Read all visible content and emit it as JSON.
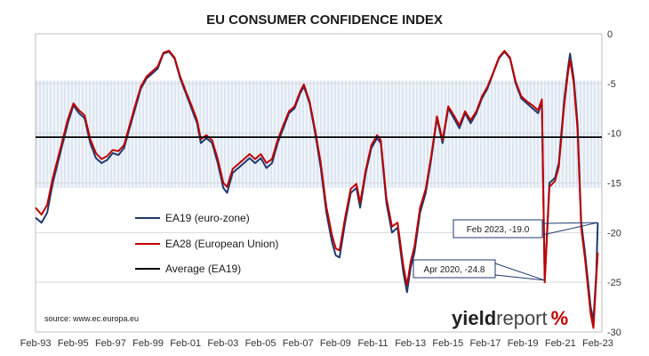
{
  "chart_data": {
    "type": "line",
    "title": "EU CONSUMER CONFIDENCE INDEX",
    "xlabel": "",
    "ylabel": "",
    "x_tick_labels": [
      "Feb-93",
      "Feb-95",
      "Feb-97",
      "Feb-99",
      "Feb-01",
      "Feb-03",
      "Feb-05",
      "Feb-07",
      "Feb-09",
      "Feb-11",
      "Feb-13",
      "Feb-15",
      "Feb-17",
      "Feb-19",
      "Feb-21",
      "Feb-23"
    ],
    "x_range": [
      1993.08,
      2023.3
    ],
    "ylim": [
      -30,
      0
    ],
    "y_ticks": [
      0,
      -5,
      -10,
      -15,
      -20,
      -25,
      -30
    ],
    "y_axis_side": "right",
    "grid": true,
    "shaded_band": [
      -15.5,
      -4.7
    ],
    "series": [
      {
        "name": "EA19 (euro-zone)",
        "color": "#1f3a6e",
        "points": [
          [
            1993.08,
            -18.5
          ],
          [
            1993.4,
            -19.0
          ],
          [
            1993.7,
            -18.0
          ],
          [
            1994.0,
            -15.0
          ],
          [
            1994.4,
            -12.0
          ],
          [
            1994.8,
            -9.0
          ],
          [
            1995.1,
            -7.2
          ],
          [
            1995.4,
            -8.0
          ],
          [
            1995.7,
            -8.5
          ],
          [
            1996.0,
            -11.0
          ],
          [
            1996.3,
            -12.5
          ],
          [
            1996.6,
            -13.0
          ],
          [
            1996.9,
            -12.7
          ],
          [
            1997.2,
            -12.0
          ],
          [
            1997.5,
            -12.2
          ],
          [
            1997.8,
            -11.5
          ],
          [
            1998.1,
            -9.5
          ],
          [
            1998.4,
            -7.5
          ],
          [
            1998.7,
            -5.5
          ],
          [
            1999.0,
            -4.5
          ],
          [
            1999.3,
            -4.0
          ],
          [
            1999.6,
            -3.5
          ],
          [
            1999.9,
            -2.0
          ],
          [
            2000.2,
            -1.8
          ],
          [
            2000.5,
            -2.5
          ],
          [
            2000.8,
            -4.5
          ],
          [
            2001.1,
            -6.0
          ],
          [
            2001.4,
            -7.5
          ],
          [
            2001.7,
            -9.0
          ],
          [
            2001.9,
            -11.0
          ],
          [
            2002.2,
            -10.5
          ],
          [
            2002.5,
            -11.0
          ],
          [
            2002.8,
            -13.0
          ],
          [
            2003.1,
            -15.5
          ],
          [
            2003.3,
            -16.0
          ],
          [
            2003.6,
            -14.0
          ],
          [
            2003.9,
            -13.5
          ],
          [
            2004.2,
            -13.0
          ],
          [
            2004.5,
            -12.5
          ],
          [
            2004.8,
            -13.0
          ],
          [
            2005.1,
            -12.5
          ],
          [
            2005.4,
            -13.5
          ],
          [
            2005.7,
            -13.0
          ],
          [
            2006.0,
            -11.0
          ],
          [
            2006.3,
            -9.5
          ],
          [
            2006.6,
            -8.0
          ],
          [
            2006.9,
            -7.5
          ],
          [
            2007.2,
            -6.0
          ],
          [
            2007.4,
            -5.3
          ],
          [
            2007.7,
            -7.0
          ],
          [
            2008.0,
            -10.0
          ],
          [
            2008.3,
            -13.5
          ],
          [
            2008.6,
            -18.0
          ],
          [
            2008.9,
            -21.0
          ],
          [
            2009.1,
            -22.3
          ],
          [
            2009.3,
            -22.5
          ],
          [
            2009.6,
            -19.0
          ],
          [
            2009.9,
            -16.0
          ],
          [
            2010.2,
            -15.5
          ],
          [
            2010.4,
            -17.5
          ],
          [
            2010.7,
            -14.0
          ],
          [
            2011.0,
            -11.5
          ],
          [
            2011.3,
            -10.5
          ],
          [
            2011.5,
            -11.0
          ],
          [
            2011.8,
            -17.0
          ],
          [
            2012.1,
            -20.0
          ],
          [
            2012.4,
            -19.5
          ],
          [
            2012.7,
            -24.0
          ],
          [
            2012.9,
            -26.0
          ],
          [
            2013.1,
            -23.5
          ],
          [
            2013.3,
            -22.0
          ],
          [
            2013.6,
            -18.0
          ],
          [
            2013.9,
            -16.0
          ],
          [
            2014.2,
            -12.5
          ],
          [
            2014.5,
            -8.5
          ],
          [
            2014.8,
            -11.0
          ],
          [
            2015.1,
            -7.5
          ],
          [
            2015.4,
            -8.5
          ],
          [
            2015.7,
            -9.5
          ],
          [
            2016.0,
            -8.0
          ],
          [
            2016.3,
            -9.0
          ],
          [
            2016.6,
            -8.0
          ],
          [
            2016.9,
            -6.5
          ],
          [
            2017.2,
            -5.5
          ],
          [
            2017.5,
            -4.0
          ],
          [
            2017.8,
            -2.5
          ],
          [
            2018.1,
            -1.8
          ],
          [
            2018.4,
            -2.5
          ],
          [
            2018.7,
            -5.0
          ],
          [
            2019.0,
            -6.5
          ],
          [
            2019.3,
            -7.0
          ],
          [
            2019.6,
            -7.5
          ],
          [
            2019.9,
            -8.0
          ],
          [
            2020.1,
            -6.8
          ],
          [
            2020.25,
            -24.8
          ],
          [
            2020.5,
            -15.0
          ],
          [
            2020.8,
            -14.5
          ],
          [
            2021.0,
            -13.0
          ],
          [
            2021.3,
            -6.5
          ],
          [
            2021.5,
            -3.3
          ],
          [
            2021.6,
            -2.0
          ],
          [
            2021.8,
            -4.5
          ],
          [
            2022.0,
            -9.0
          ],
          [
            2022.2,
            -19.0
          ],
          [
            2022.4,
            -22.0
          ],
          [
            2022.7,
            -27.5
          ],
          [
            2022.85,
            -28.8
          ],
          [
            2023.0,
            -24.0
          ],
          [
            2023.08,
            -19.0
          ]
        ]
      },
      {
        "name": "EA28 (European Union)",
        "color": "#c00000",
        "points": [
          [
            1993.08,
            -17.5
          ],
          [
            1993.4,
            -18.2
          ],
          [
            1993.7,
            -17.2
          ],
          [
            1994.0,
            -14.5
          ],
          [
            1994.4,
            -11.6
          ],
          [
            1994.8,
            -8.6
          ],
          [
            1995.1,
            -7.0
          ],
          [
            1995.4,
            -7.7
          ],
          [
            1995.7,
            -8.2
          ],
          [
            1996.0,
            -10.6
          ],
          [
            1996.3,
            -12.0
          ],
          [
            1996.6,
            -12.6
          ],
          [
            1996.9,
            -12.3
          ],
          [
            1997.2,
            -11.7
          ],
          [
            1997.5,
            -11.8
          ],
          [
            1997.8,
            -11.2
          ],
          [
            1998.1,
            -9.2
          ],
          [
            1998.4,
            -7.2
          ],
          [
            1998.7,
            -5.3
          ],
          [
            1999.0,
            -4.3
          ],
          [
            1999.3,
            -3.8
          ],
          [
            1999.6,
            -3.3
          ],
          [
            1999.9,
            -1.9
          ],
          [
            2000.2,
            -1.7
          ],
          [
            2000.5,
            -2.4
          ],
          [
            2000.8,
            -4.3
          ],
          [
            2001.1,
            -5.8
          ],
          [
            2001.4,
            -7.2
          ],
          [
            2001.7,
            -8.7
          ],
          [
            2001.9,
            -10.6
          ],
          [
            2002.2,
            -10.2
          ],
          [
            2002.5,
            -10.7
          ],
          [
            2002.8,
            -12.6
          ],
          [
            2003.1,
            -15.0
          ],
          [
            2003.3,
            -15.4
          ],
          [
            2003.6,
            -13.6
          ],
          [
            2003.9,
            -13.1
          ],
          [
            2004.2,
            -12.6
          ],
          [
            2004.5,
            -12.1
          ],
          [
            2004.8,
            -12.6
          ],
          [
            2005.1,
            -12.1
          ],
          [
            2005.4,
            -13.0
          ],
          [
            2005.7,
            -12.6
          ],
          [
            2006.0,
            -10.7
          ],
          [
            2006.3,
            -9.2
          ],
          [
            2006.6,
            -7.8
          ],
          [
            2006.9,
            -7.3
          ],
          [
            2007.2,
            -5.8
          ],
          [
            2007.4,
            -5.1
          ],
          [
            2007.7,
            -6.8
          ],
          [
            2008.0,
            -9.7
          ],
          [
            2008.3,
            -13.0
          ],
          [
            2008.6,
            -17.4
          ],
          [
            2008.9,
            -20.3
          ],
          [
            2009.1,
            -21.6
          ],
          [
            2009.3,
            -21.8
          ],
          [
            2009.6,
            -18.5
          ],
          [
            2009.9,
            -15.6
          ],
          [
            2010.2,
            -15.1
          ],
          [
            2010.4,
            -17.0
          ],
          [
            2010.7,
            -13.7
          ],
          [
            2011.0,
            -11.2
          ],
          [
            2011.3,
            -10.2
          ],
          [
            2011.5,
            -10.7
          ],
          [
            2011.8,
            -16.5
          ],
          [
            2012.1,
            -19.4
          ],
          [
            2012.4,
            -19.0
          ],
          [
            2012.7,
            -23.3
          ],
          [
            2012.9,
            -25.3
          ],
          [
            2013.1,
            -22.9
          ],
          [
            2013.3,
            -21.4
          ],
          [
            2013.6,
            -17.5
          ],
          [
            2013.9,
            -15.6
          ],
          [
            2014.2,
            -12.2
          ],
          [
            2014.5,
            -8.3
          ],
          [
            2014.8,
            -10.7
          ],
          [
            2015.1,
            -7.3
          ],
          [
            2015.4,
            -8.2
          ],
          [
            2015.7,
            -9.2
          ],
          [
            2016.0,
            -7.8
          ],
          [
            2016.3,
            -8.7
          ],
          [
            2016.6,
            -7.8
          ],
          [
            2016.9,
            -6.3
          ],
          [
            2017.2,
            -5.3
          ],
          [
            2017.5,
            -3.9
          ],
          [
            2017.8,
            -2.4
          ],
          [
            2018.1,
            -1.7
          ],
          [
            2018.4,
            -2.4
          ],
          [
            2018.7,
            -4.8
          ],
          [
            2019.0,
            -6.3
          ],
          [
            2019.3,
            -6.8
          ],
          [
            2019.6,
            -7.2
          ],
          [
            2019.9,
            -7.7
          ],
          [
            2020.1,
            -6.6
          ],
          [
            2020.25,
            -25.0
          ],
          [
            2020.5,
            -15.4
          ],
          [
            2020.8,
            -14.8
          ],
          [
            2021.0,
            -13.4
          ],
          [
            2021.3,
            -7.0
          ],
          [
            2021.5,
            -3.8
          ],
          [
            2021.6,
            -2.6
          ],
          [
            2021.8,
            -5.0
          ],
          [
            2022.0,
            -9.6
          ],
          [
            2022.2,
            -19.6
          ],
          [
            2022.4,
            -22.6
          ],
          [
            2022.7,
            -28.2
          ],
          [
            2022.85,
            -29.6
          ],
          [
            2023.0,
            -24.6
          ],
          [
            2023.08,
            -22.0
          ]
        ]
      },
      {
        "name": "Average (EA19)",
        "color": "#000000",
        "constant": -10.4
      }
    ],
    "annotations": [
      {
        "text": "Feb 2023, -19.0",
        "point": [
          2023.08,
          -19.0
        ]
      },
      {
        "text": "Apr 2020, -24.8",
        "point": [
          2020.25,
          -24.8
        ]
      }
    ],
    "legend_position": "center-left",
    "source": "source: www.ec.europa.eu"
  },
  "brand": {
    "part1": "yield",
    "part2": "report",
    "symbol": "%"
  }
}
